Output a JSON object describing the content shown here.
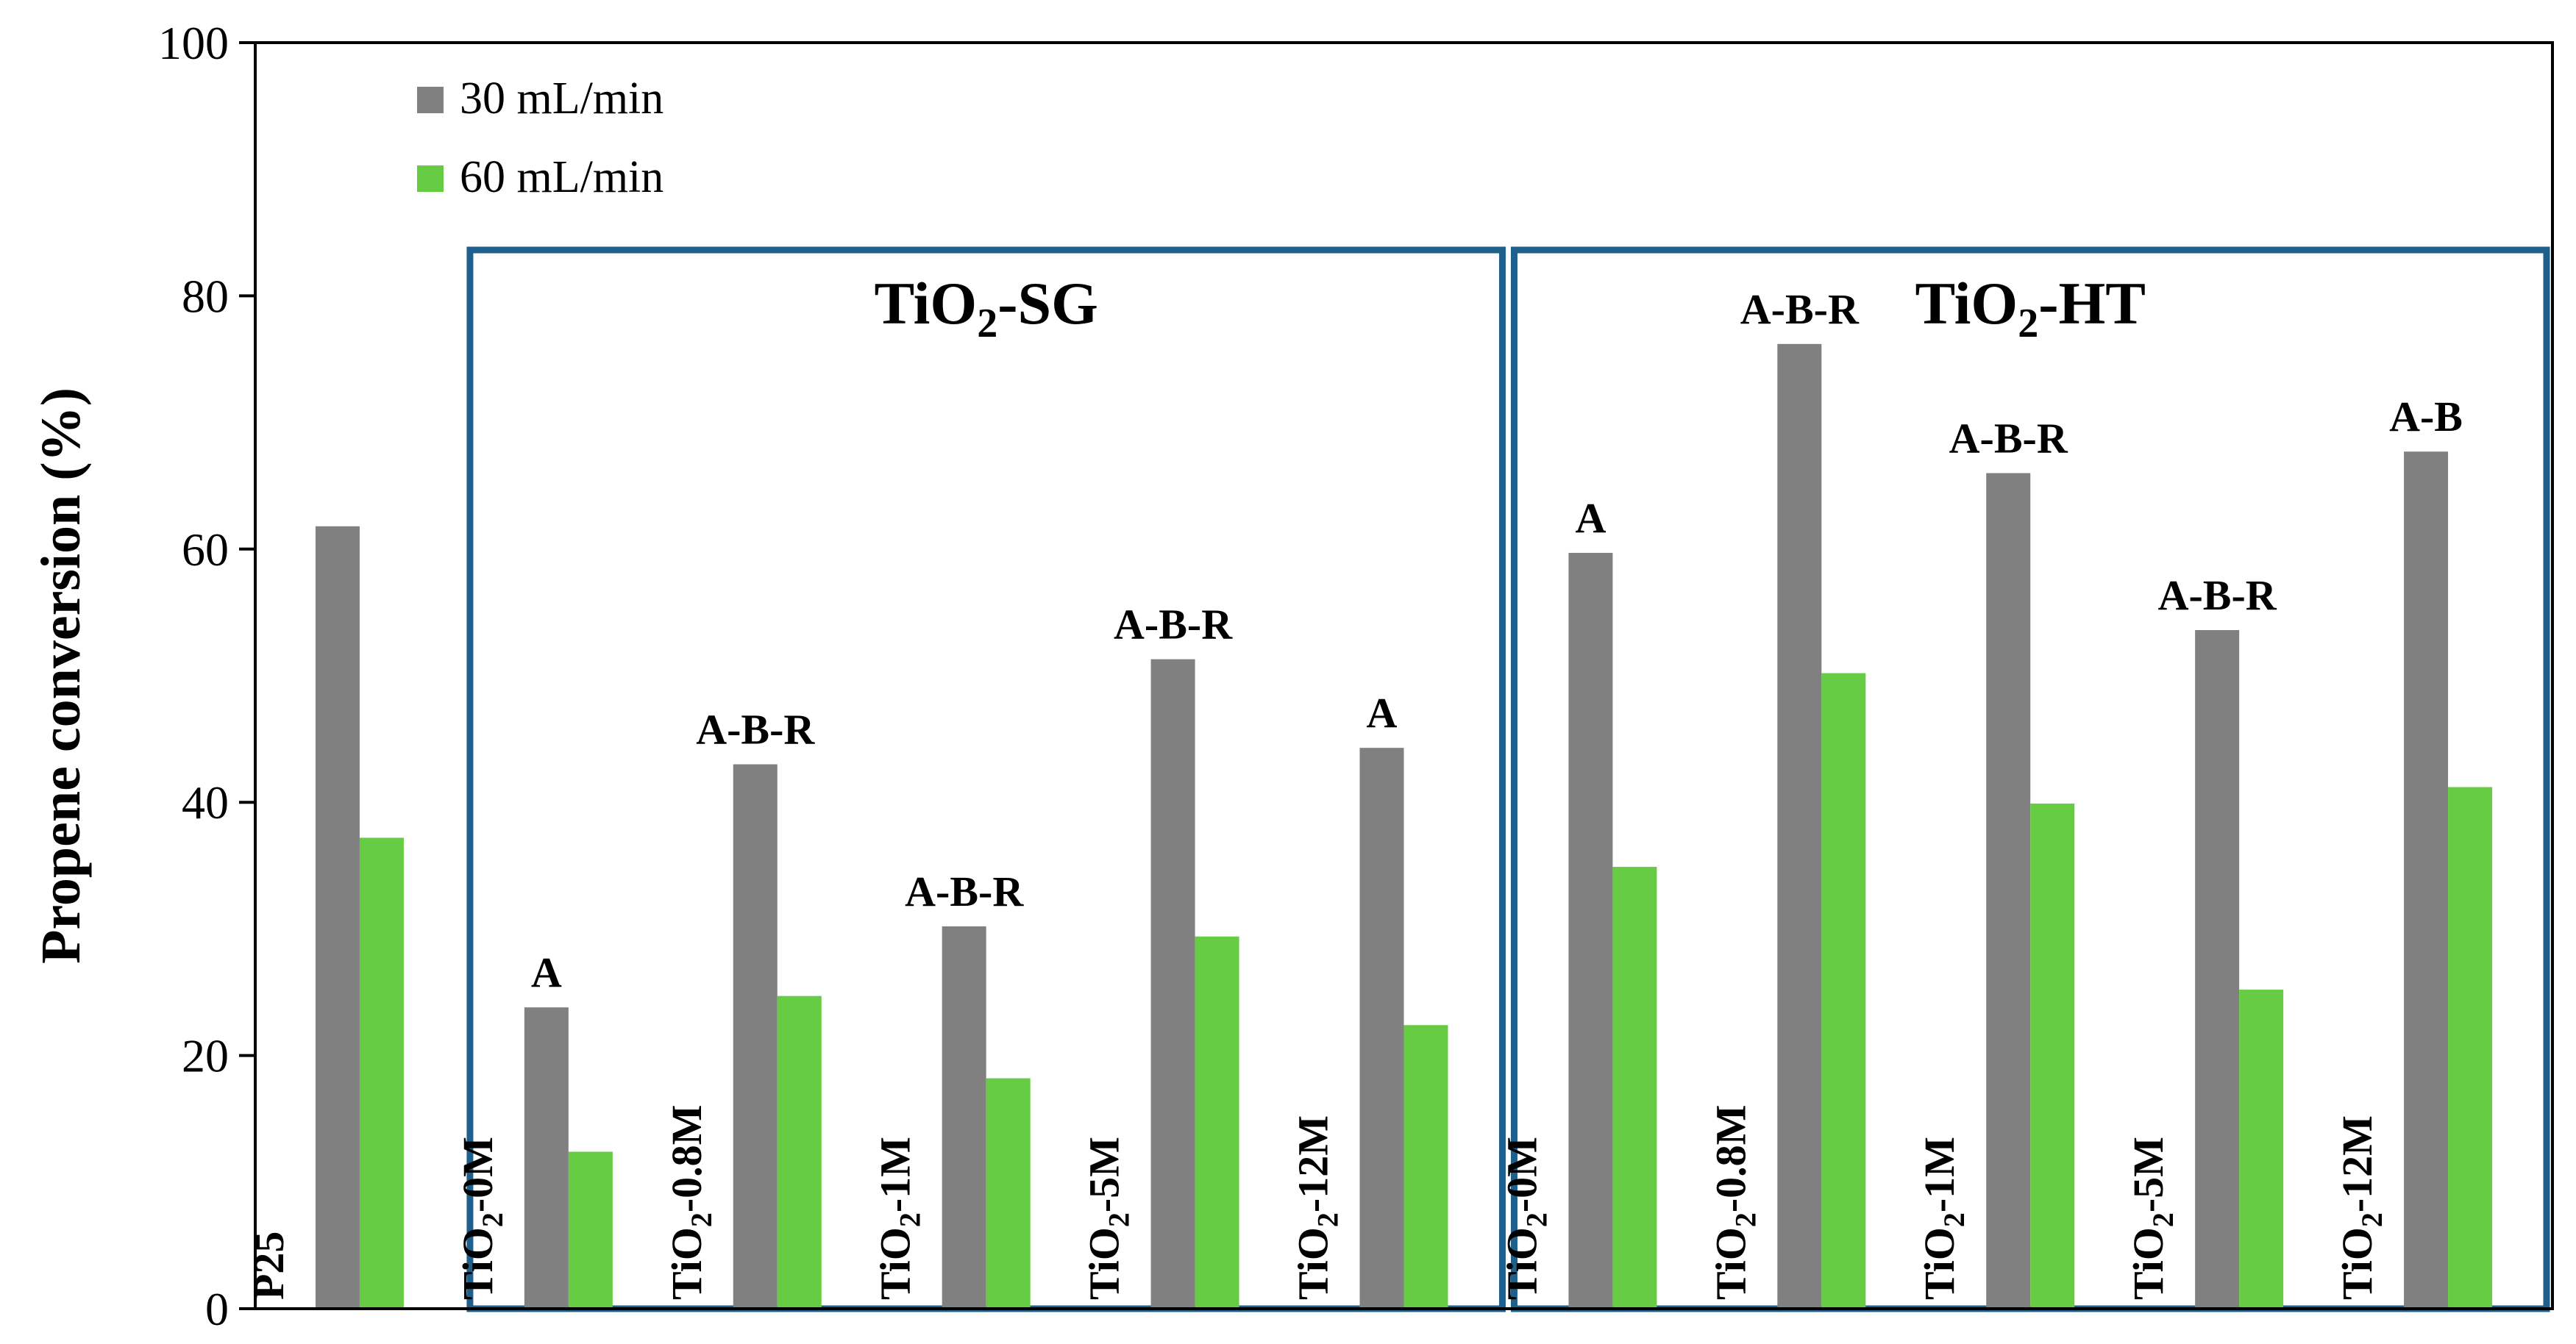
{
  "chart_data": {
    "type": "bar",
    "title": "",
    "xlabel": "",
    "ylabel": "Propene conversion (%)",
    "ylim": [
      0,
      100
    ],
    "yticks": [
      "0",
      "20",
      "40",
      "60",
      "80",
      "100"
    ],
    "categories": [
      "P25",
      "TiO2-0M",
      "TiO2-0.8M",
      "TiO2-1M",
      "TiO2-5M",
      "TiO2-12M",
      "TiO2-0M",
      "TiO2-0.8M",
      "TiO2-1M",
      "TiO2-5M",
      "TiO2-12M"
    ],
    "category_parts": [
      {
        "pre": "P25",
        "sub": "",
        "post": ""
      },
      {
        "pre": "TiO",
        "sub": "2",
        "post": "-0M"
      },
      {
        "pre": "TiO",
        "sub": "2",
        "post": "-0.8M"
      },
      {
        "pre": "TiO",
        "sub": "2",
        "post": "-1M"
      },
      {
        "pre": "TiO",
        "sub": "2",
        "post": "-5M"
      },
      {
        "pre": "TiO",
        "sub": "2",
        "post": "-12M"
      },
      {
        "pre": "TiO",
        "sub": "2",
        "post": "-0M"
      },
      {
        "pre": "TiO",
        "sub": "2",
        "post": "-0.8M"
      },
      {
        "pre": "TiO",
        "sub": "2",
        "post": "-1M"
      },
      {
        "pre": "TiO",
        "sub": "2",
        "post": "-5M"
      },
      {
        "pre": "TiO",
        "sub": "2",
        "post": "-12M"
      }
    ],
    "series": [
      {
        "name": "30 mL/min",
        "color": "#808080",
        "values": [
          61.8,
          23.8,
          43.0,
          30.2,
          51.3,
          44.3,
          59.7,
          76.2,
          66.0,
          53.6,
          67.7
        ]
      },
      {
        "name": "60 mL/min",
        "color": "#66cc44",
        "values": [
          37.2,
          12.4,
          24.7,
          18.2,
          29.4,
          22.4,
          34.9,
          50.2,
          39.9,
          25.2,
          41.2
        ]
      }
    ],
    "phase_labels": [
      "",
      "A",
      "A-B-R",
      "A-B-R",
      "A-B-R",
      "A",
      "A",
      "A-B-R",
      "A-B-R",
      "A-B-R",
      "A-B"
    ],
    "groups": [
      {
        "pre": "TiO",
        "sub": "2",
        "post": "-SG",
        "first": 1,
        "last": 5
      },
      {
        "pre": "TiO",
        "sub": "2",
        "post": "-HT",
        "first": 6,
        "last": 10
      }
    ],
    "group_box_color": "#1f5f8b",
    "legend_position": "top-left",
    "grid": false
  }
}
